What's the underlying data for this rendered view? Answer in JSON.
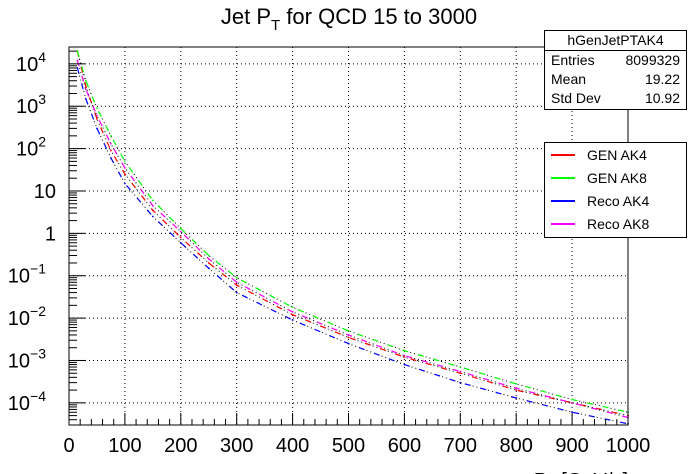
{
  "chart_data": {
    "type": "line",
    "title": "Jet P_T for QCD 15 to 3000",
    "title_main": "Jet P",
    "title_sub": "T",
    "title_rest": " for QCD 15 to 3000",
    "xlabel": "P_T [GeV/c]",
    "ylabel": "",
    "xlim": [
      0,
      1000
    ],
    "ylim": [
      3e-05,
      25000.0
    ],
    "yscale": "log",
    "grid": true,
    "x_ticks": [
      "0",
      "100",
      "200",
      "300",
      "400",
      "500",
      "600",
      "700",
      "800",
      "900",
      "1000"
    ],
    "y_ticks": [
      {
        "base": "10",
        "exp": "4",
        "value": 10000
      },
      {
        "base": "10",
        "exp": "3",
        "value": 1000
      },
      {
        "base": "10",
        "exp": "2",
        "value": 100
      },
      {
        "base": "10",
        "exp": "",
        "value": 10
      },
      {
        "base": "1",
        "exp": "",
        "value": 1
      },
      {
        "base": "10",
        "exp": "−1",
        "value": 0.1
      },
      {
        "base": "10",
        "exp": "−2",
        "value": 0.01
      },
      {
        "base": "10",
        "exp": "−3",
        "value": 0.001
      },
      {
        "base": "10",
        "exp": "−4",
        "value": 0.0001
      }
    ],
    "x": [
      15,
      30,
      50,
      75,
      100,
      150,
      200,
      250,
      300,
      400,
      500,
      600,
      700,
      800,
      900,
      1000
    ],
    "series": [
      {
        "name": "GEN AK4",
        "color": "#ff0000",
        "values": [
          20000,
          3000,
          500,
          90,
          25,
          3.5,
          0.8,
          0.2,
          0.06,
          0.012,
          0.0035,
          0.0012,
          0.0005,
          0.0002,
          0.0001,
          5e-05
        ]
      },
      {
        "name": "GEN AK8",
        "color": "#00ff00",
        "values": [
          20000,
          4000,
          900,
          200,
          50,
          6,
          1.3,
          0.3,
          0.09,
          0.018,
          0.005,
          0.0017,
          0.0007,
          0.00028,
          0.00012,
          6e-05
        ]
      },
      {
        "name": "Reco AK4",
        "color": "#0000ff",
        "values": [
          8000,
          1500,
          300,
          60,
          15,
          2.5,
          0.6,
          0.15,
          0.04,
          0.009,
          0.0025,
          0.0008,
          0.0003,
          0.00013,
          6e-05,
          3.2e-05
        ]
      },
      {
        "name": "Reco AK8",
        "color": "#ff00ff",
        "values": [
          12000,
          2500,
          600,
          130,
          35,
          4.5,
          1.1,
          0.25,
          0.07,
          0.014,
          0.004,
          0.0013,
          0.00055,
          0.00022,
          0.0001,
          4.5e-05
        ]
      }
    ],
    "legend_position": "right"
  },
  "stats": {
    "name": "hGenJetPTAK4",
    "rows": [
      {
        "label": "Entries",
        "value": "8099329"
      },
      {
        "label": "Mean",
        "value": "19.22"
      },
      {
        "label": "Std Dev",
        "value": "10.92"
      }
    ]
  },
  "legend": [
    {
      "label": "GEN AK4",
      "color": "#ff0000"
    },
    {
      "label": "GEN AK8",
      "color": "#00ff00"
    },
    {
      "label": "Reco AK4",
      "color": "#0000ff"
    },
    {
      "label": "Reco AK8",
      "color": "#ff00ff"
    }
  ]
}
